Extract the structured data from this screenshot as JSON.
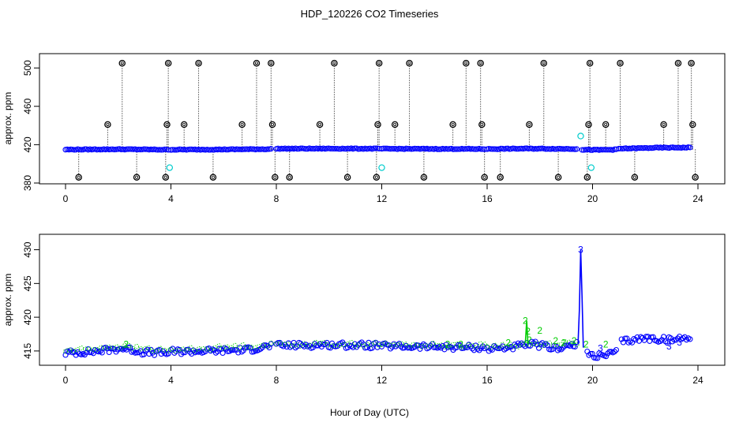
{
  "figure": {
    "title": "HDP_120226  CO2 Timeseries",
    "xlabel": "Hour of Day (UTC)"
  },
  "colors": {
    "black": "#000000",
    "blue": "#0000ff",
    "green": "#00cc00",
    "cyan": "#00cccc"
  },
  "chart_data": [
    {
      "type": "scatter",
      "panel": "top",
      "ylabel": "approx. ppm",
      "xlim": [
        0,
        24
      ],
      "ylim": [
        380,
        510
      ],
      "x_ticks": [
        0,
        4,
        8,
        12,
        16,
        20,
        24
      ],
      "y_ticks": [
        380,
        420,
        460,
        500
      ],
      "grid": false,
      "series": [
        {
          "color": "black",
          "style": "open-circle-with-dotted-drop",
          "points": [
            [
              0.5,
              386
            ],
            [
              1.6,
              441
            ],
            [
              2.15,
              505
            ],
            [
              2.7,
              386
            ],
            [
              3.8,
              386
            ],
            [
              3.85,
              441
            ],
            [
              3.9,
              505
            ],
            [
              4.5,
              441
            ],
            [
              5.05,
              505
            ],
            [
              5.6,
              386
            ],
            [
              6.7,
              441
            ],
            [
              7.25,
              505
            ],
            [
              7.8,
              505
            ],
            [
              7.85,
              441
            ],
            [
              7.95,
              386
            ],
            [
              8.5,
              386
            ],
            [
              9.65,
              441
            ],
            [
              10.2,
              505
            ],
            [
              10.7,
              386
            ],
            [
              11.8,
              386
            ],
            [
              11.85,
              441
            ],
            [
              11.9,
              505
            ],
            [
              12.5,
              441
            ],
            [
              13.05,
              505
            ],
            [
              13.6,
              386
            ],
            [
              14.7,
              441
            ],
            [
              15.2,
              505
            ],
            [
              15.75,
              505
            ],
            [
              15.8,
              441
            ],
            [
              15.9,
              386
            ],
            [
              16.5,
              386
            ],
            [
              17.6,
              441
            ],
            [
              18.15,
              505
            ],
            [
              18.7,
              386
            ],
            [
              19.8,
              386
            ],
            [
              19.85,
              441
            ],
            [
              19.9,
              505
            ],
            [
              20.5,
              441
            ],
            [
              21.05,
              505
            ],
            [
              21.6,
              386
            ],
            [
              22.7,
              441
            ],
            [
              23.25,
              505
            ],
            [
              23.75,
              505
            ],
            [
              23.8,
              441
            ],
            [
              23.9,
              386
            ]
          ]
        },
        {
          "color": "cyan",
          "style": "open-circle",
          "points": [
            [
              3.95,
              396
            ],
            [
              12.0,
              396
            ],
            [
              19.95,
              396
            ],
            [
              19.55,
              429
            ]
          ]
        },
        {
          "color": "blue",
          "style": "open-circle-dense",
          "segments": [
            {
              "x": [
                0.0,
                2.0,
                3.9
              ],
              "y": [
                414.9,
                415.2,
                414.8
              ]
            },
            {
              "x": [
                4.0,
                6.0,
                7.8
              ],
              "y": [
                414.8,
                415.0,
                415.4
              ]
            },
            {
              "x": [
                8.0,
                10.0,
                11.9
              ],
              "y": [
                415.8,
                415.9,
                415.8
              ]
            },
            {
              "x": [
                12.0,
                14.0,
                15.9
              ],
              "y": [
                415.7,
                415.6,
                415.5
              ]
            },
            {
              "x": [
                16.0,
                17.5,
                19.4
              ],
              "y": [
                415.5,
                415.9,
                415.6
              ]
            },
            {
              "x": [
                19.6,
                20.2,
                20.9
              ],
              "y": [
                414.8,
                414.5,
                414.9
              ]
            },
            {
              "x": [
                21.0,
                22.5,
                23.7
              ],
              "y": [
                415.8,
                416.8,
                417.0
              ]
            }
          ]
        }
      ]
    },
    {
      "type": "scatter",
      "panel": "bottom",
      "ylabel": "approx. ppm",
      "xlim": [
        0,
        24
      ],
      "ylim": [
        413,
        431
      ],
      "x_ticks": [
        0,
        4,
        8,
        12,
        16,
        20,
        24
      ],
      "y_ticks": [
        415,
        420,
        425,
        430
      ],
      "grid": false,
      "series": [
        {
          "color": "blue",
          "style": "open-circle-dense",
          "segments": [
            {
              "x": [
                0.0,
                1.0,
                2.2,
                3.0,
                3.9
              ],
              "y": [
                414.7,
                414.9,
                415.4,
                414.8,
                414.7
              ]
            },
            {
              "x": [
                4.0,
                5.5,
                7.0,
                7.8
              ],
              "y": [
                414.9,
                415.0,
                415.2,
                415.8
              ]
            },
            {
              "x": [
                8.0,
                10.0,
                11.9
              ],
              "y": [
                415.8,
                415.9,
                415.8
              ]
            },
            {
              "x": [
                12.0,
                14.0,
                15.9
              ],
              "y": [
                415.7,
                415.6,
                415.5
              ]
            },
            {
              "x": [
                16.0,
                17.0,
                17.8,
                18.5,
                19.4
              ],
              "y": [
                415.3,
                415.6,
                416.0,
                415.4,
                415.9
              ]
            },
            {
              "x": [
                19.8,
                20.3,
                20.9
              ],
              "y": [
                414.6,
                414.2,
                414.8
              ]
            },
            {
              "x": [
                21.1,
                22.0,
                23.0,
                23.7
              ],
              "y": [
                416.4,
                416.9,
                416.6,
                417.1
              ]
            }
          ],
          "spike": {
            "x": [
              19.45,
              19.5,
              19.55,
              19.6,
              19.65
            ],
            "y": [
              416.0,
              421.0,
              430.0,
              423.0,
              415.5
            ]
          }
        },
        {
          "color": "green",
          "style": "dotted-circle-overlay",
          "segments": [
            {
              "x": [
                0.0,
                2.0,
                3.9
              ],
              "y": [
                415.0,
                415.7,
                415.0
              ]
            },
            {
              "x": [
                4.0,
                7.8
              ],
              "y": [
                415.1,
                415.9
              ]
            },
            {
              "x": [
                8.0,
                11.9
              ],
              "y": [
                416.0,
                416.0
              ]
            },
            {
              "x": [
                12.0,
                15.9
              ],
              "y": [
                415.9,
                415.8
              ]
            },
            {
              "x": [
                16.0,
                19.4
              ],
              "y": [
                415.7,
                416.2
              ]
            }
          ],
          "spike": {
            "x": [
              17.45,
              17.5,
              17.55
            ],
            "y": [
              416.2,
              419.5,
              416.0
            ]
          }
        }
      ],
      "labels": [
        {
          "text": "3",
          "x": 19.55,
          "y": 430.0,
          "color": "blue"
        },
        {
          "text": "2",
          "x": 2.3,
          "y": 416.0,
          "color": "green"
        },
        {
          "text": "2",
          "x": 14.5,
          "y": 416.0,
          "color": "green"
        },
        {
          "text": "2",
          "x": 15.0,
          "y": 416.0,
          "color": "green"
        },
        {
          "text": "2",
          "x": 16.8,
          "y": 416.2,
          "color": "green"
        },
        {
          "text": "2",
          "x": 17.45,
          "y": 419.5,
          "color": "green"
        },
        {
          "text": "2",
          "x": 17.55,
          "y": 417.9,
          "color": "green"
        },
        {
          "text": "2",
          "x": 17.6,
          "y": 416.6,
          "color": "green"
        },
        {
          "text": "2",
          "x": 18.0,
          "y": 418.0,
          "color": "green"
        },
        {
          "text": "2",
          "x": 18.6,
          "y": 416.5,
          "color": "green"
        },
        {
          "text": "2",
          "x": 18.9,
          "y": 416.2,
          "color": "green"
        },
        {
          "text": "2",
          "x": 19.3,
          "y": 416.5,
          "color": "green"
        },
        {
          "text": "2",
          "x": 19.75,
          "y": 416.0,
          "color": "green"
        },
        {
          "text": "2",
          "x": 20.5,
          "y": 416.0,
          "color": "green"
        },
        {
          "text": "3",
          "x": 20.3,
          "y": 415.4,
          "color": "blue"
        },
        {
          "text": "3",
          "x": 22.9,
          "y": 415.7,
          "color": "blue"
        },
        {
          "text": "3",
          "x": 23.3,
          "y": 416.3,
          "color": "blue"
        }
      ]
    }
  ]
}
